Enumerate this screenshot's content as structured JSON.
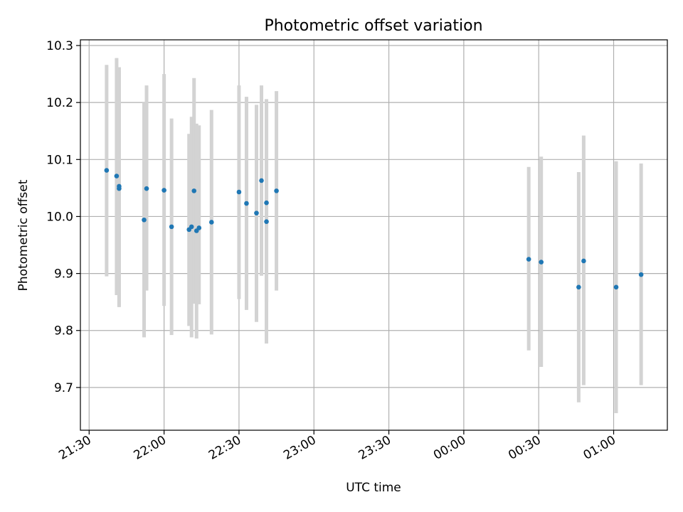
{
  "chart_data": {
    "type": "scatter",
    "title": "Photometric offset variation",
    "xlabel": "UTC time",
    "ylabel": "Photometric offset",
    "x_ticks": [
      "21:30",
      "22:00",
      "22:30",
      "23:00",
      "23:30",
      "00:00",
      "00:30",
      "01:00"
    ],
    "y_ticks": [
      "9.7",
      "9.8",
      "9.9",
      "10.0",
      "10.1",
      "10.2",
      "10.3"
    ],
    "xlim_minutes_after_2130": [
      -3.5,
      231.5
    ],
    "ylim": [
      9.625,
      10.31
    ],
    "grid": true,
    "marker_color": "#1f77b4",
    "errorbar_color": "#d3d3d3",
    "points": [
      {
        "t": "21:37",
        "y": 10.081,
        "lo": 9.895,
        "hi": 10.266
      },
      {
        "t": "21:41",
        "y": 10.071,
        "lo": 9.862,
        "hi": 10.278
      },
      {
        "t": "21:42",
        "y": 10.053,
        "lo": 9.843,
        "hi": 10.262
      },
      {
        "t": "21:42",
        "y": 10.049,
        "lo": 9.841,
        "hi": 10.256
      },
      {
        "t": "21:52",
        "y": 9.994,
        "lo": 9.788,
        "hi": 10.2
      },
      {
        "t": "21:53",
        "y": 10.049,
        "lo": 9.87,
        "hi": 10.23
      },
      {
        "t": "22:00",
        "y": 10.046,
        "lo": 9.843,
        "hi": 10.25
      },
      {
        "t": "22:03",
        "y": 9.982,
        "lo": 9.792,
        "hi": 10.172
      },
      {
        "t": "22:10",
        "y": 9.977,
        "lo": 9.808,
        "hi": 10.145
      },
      {
        "t": "22:11",
        "y": 9.982,
        "lo": 9.788,
        "hi": 10.175
      },
      {
        "t": "22:12",
        "y": 10.045,
        "lo": 9.847,
        "hi": 10.243
      },
      {
        "t": "22:13",
        "y": 9.975,
        "lo": 9.786,
        "hi": 10.163
      },
      {
        "t": "22:14",
        "y": 9.98,
        "lo": 9.846,
        "hi": 10.16
      },
      {
        "t": "22:19",
        "y": 9.99,
        "lo": 9.793,
        "hi": 10.187
      },
      {
        "t": "22:30",
        "y": 10.043,
        "lo": 9.855,
        "hi": 10.23
      },
      {
        "t": "22:33",
        "y": 10.023,
        "lo": 9.836,
        "hi": 10.21
      },
      {
        "t": "22:37",
        "y": 10.006,
        "lo": 9.815,
        "hi": 10.196
      },
      {
        "t": "22:39",
        "y": 10.063,
        "lo": 9.896,
        "hi": 10.23
      },
      {
        "t": "22:41",
        "y": 10.024,
        "lo": 9.85,
        "hi": 10.204
      },
      {
        "t": "22:41",
        "y": 9.991,
        "lo": 9.777,
        "hi": 10.206
      },
      {
        "t": "22:45",
        "y": 10.045,
        "lo": 9.87,
        "hi": 10.22
      },
      {
        "t": "00:26",
        "y": 9.925,
        "lo": 9.765,
        "hi": 10.087
      },
      {
        "t": "00:31",
        "y": 9.92,
        "lo": 9.736,
        "hi": 10.105
      },
      {
        "t": "00:46",
        "y": 9.876,
        "lo": 9.674,
        "hi": 10.078
      },
      {
        "t": "00:48",
        "y": 9.922,
        "lo": 9.704,
        "hi": 10.142
      },
      {
        "t": "01:01",
        "y": 9.876,
        "lo": 9.655,
        "hi": 10.097
      },
      {
        "t": "01:11",
        "y": 9.898,
        "lo": 9.704,
        "hi": 10.093
      }
    ]
  }
}
